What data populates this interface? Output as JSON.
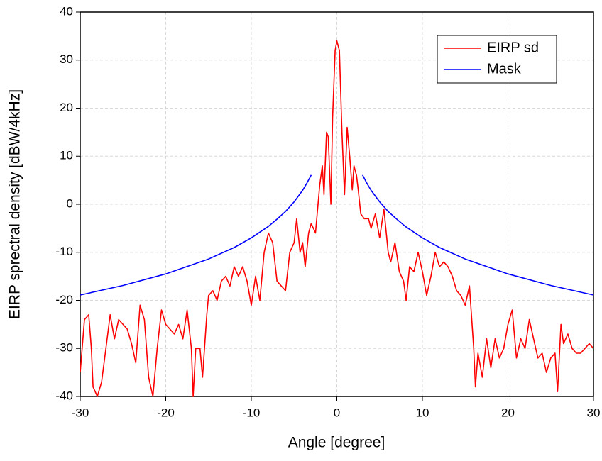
{
  "chart_data": {
    "type": "line",
    "x_label": "Angle [degree]",
    "y_label": "EIRP sprectral density [dBW/4kHz]",
    "xlim": [
      -30,
      30
    ],
    "ylim": [
      -40,
      40
    ],
    "xticks": [
      -30,
      -20,
      -10,
      0,
      10,
      20,
      30
    ],
    "yticks": [
      -40,
      -30,
      -20,
      -10,
      0,
      10,
      20,
      30,
      40
    ],
    "grid": true,
    "legend": "upper-right",
    "series": [
      {
        "name": "EIRP sd",
        "color": "#ff0000",
        "x": [
          -30,
          -29.5,
          -29,
          -28.7,
          -28.5,
          -28,
          -27.5,
          -27,
          -26.5,
          -26,
          -25.5,
          -25,
          -24.5,
          -24,
          -23.5,
          -23,
          -22.5,
          -22,
          -21.5,
          -21,
          -20.5,
          -20,
          -19.5,
          -19,
          -18.5,
          -18,
          -17.5,
          -17,
          -16.8,
          -16.5,
          -16,
          -15.7,
          -15.2,
          -15,
          -14.5,
          -14,
          -13.5,
          -13,
          -12.5,
          -12,
          -11.5,
          -11,
          -10.5,
          -10,
          -9.5,
          -9,
          -8.5,
          -8,
          -7.5,
          -7,
          -6.5,
          -6,
          -5.5,
          -5,
          -4.7,
          -4.3,
          -4,
          -3.7,
          -3.3,
          -3,
          -2.5,
          -2,
          -1.7,
          -1.5,
          -1.2,
          -1,
          -0.7,
          -0.5,
          -0.2,
          0,
          0.3,
          0.6,
          0.9,
          1.2,
          1.5,
          1.8,
          2,
          2.3,
          2.5,
          2.8,
          3.2,
          3.7,
          4,
          4.5,
          5,
          5.5,
          6,
          6.3,
          6.8,
          7.3,
          7.8,
          8.1,
          8.5,
          9,
          9.5,
          10,
          10.5,
          11,
          11.5,
          12,
          12.5,
          13,
          13.5,
          14,
          14.5,
          15,
          15.5,
          16,
          16.2,
          16.5,
          17,
          17.5,
          18,
          18.5,
          19,
          19.5,
          20,
          20.5,
          21,
          21.5,
          22,
          22.5,
          23,
          23.5,
          24,
          24.5,
          25,
          25.5,
          25.8,
          26.2,
          26.5,
          27,
          27.5,
          28,
          28.5,
          29,
          29.5,
          30
        ],
        "values": [
          -35,
          -24,
          -23,
          -30,
          -38,
          -40,
          -37,
          -30,
          -23,
          -28,
          -24,
          -25,
          -26,
          -29,
          -33,
          -21,
          -24,
          -36,
          -40,
          -30,
          -22,
          -25,
          -26,
          -27,
          -25,
          -28,
          -22,
          -30,
          -40,
          -30,
          -30,
          -36,
          -23,
          -19,
          -18,
          -20,
          -16,
          -15,
          -17,
          -13,
          -15,
          -13,
          -16,
          -21,
          -15,
          -20,
          -10,
          -6,
          -8,
          -16,
          -17,
          -18,
          -10,
          -8,
          -3,
          -10,
          -8,
          -13,
          -6,
          -4,
          -6,
          4,
          8,
          2,
          15,
          14,
          0,
          18,
          32,
          34,
          32,
          15,
          2,
          16,
          10,
          3,
          8,
          6,
          3,
          -2,
          -3,
          -3,
          -5,
          -2,
          -7,
          -1,
          -10,
          -12,
          -8,
          -14,
          -16,
          -20,
          -13,
          -14,
          -10,
          -14,
          -19,
          -15,
          -10,
          -13,
          -12,
          -13,
          -15,
          -18,
          -19,
          -21,
          -17,
          -30,
          -38,
          -31,
          -36,
          -28,
          -34,
          -28,
          -32,
          -30,
          -25,
          -22,
          -32,
          -28,
          -30,
          -24,
          -28,
          -32,
          -31,
          -35,
          -32,
          -31,
          -39,
          -25,
          -29,
          -27,
          -30,
          -31,
          -31,
          -30,
          -29,
          -30
        ]
      },
      {
        "name": "Mask",
        "color": "#0000ff",
        "x": [
          -30,
          -25,
          -20,
          -15,
          -12,
          -10,
          -8,
          -7,
          -6,
          -5,
          -4,
          -3.5,
          -3,
          0,
          3,
          3.5,
          4,
          5,
          6,
          7,
          8,
          10,
          12,
          15,
          20,
          25,
          30
        ],
        "values": [
          -18.9,
          -16.9,
          -14.5,
          -11.4,
          -9.0,
          -7,
          -4.6,
          -3.1,
          -1.5,
          0.5,
          2.9,
          4.4,
          6.1,
          null,
          6.1,
          4.4,
          2.9,
          0.5,
          -1.5,
          -3.1,
          -4.6,
          -7,
          -9.0,
          -11.4,
          -14.5,
          -16.9,
          -18.9
        ]
      }
    ]
  }
}
